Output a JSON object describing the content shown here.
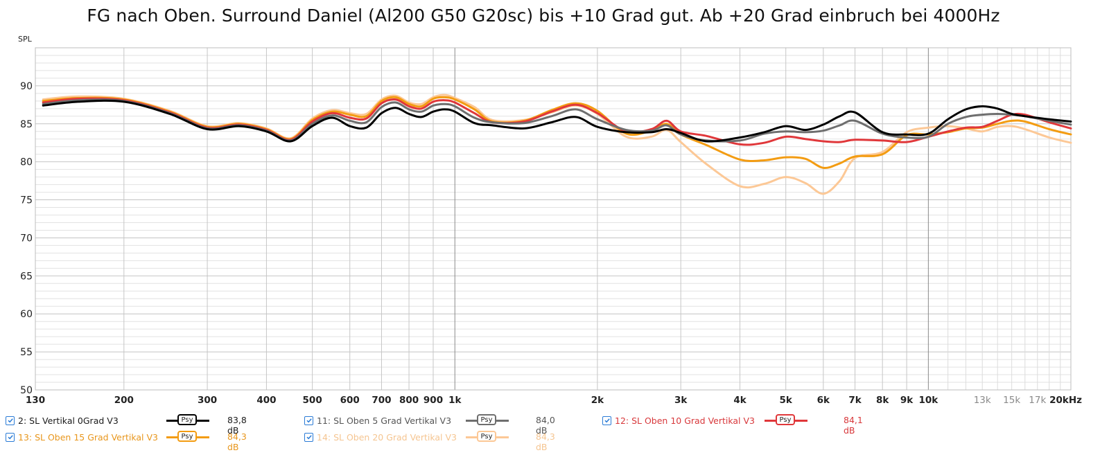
{
  "window": {
    "title": "FG nach Oben. Surround Daniel (Al200 G50 G20sc) bis +10 Grad gut. Ab +20 Grad einbruch bei 4000Hz"
  },
  "chart_data": {
    "type": "line",
    "title": "FG nach Oben. Surround Daniel (Al200 G50 G20sc) bis +10 Grad gut. Ab +20 Grad einbruch bei 4000Hz",
    "xlabel": "Hz",
    "ylabel": "SPL",
    "xscale": "log",
    "xlim": [
      130,
      20000
    ],
    "ylim": [
      50,
      95
    ],
    "grid": true,
    "legend_position": "bottom",
    "y_ticks": [
      50,
      55,
      60,
      65,
      70,
      75,
      80,
      85,
      90
    ],
    "x_ticks": [
      {
        "value": 130,
        "label": "130",
        "style": "major"
      },
      {
        "value": 200,
        "label": "200",
        "style": "major"
      },
      {
        "value": 300,
        "label": "300",
        "style": "major"
      },
      {
        "value": 400,
        "label": "400",
        "style": "major"
      },
      {
        "value": 500,
        "label": "500",
        "style": "major"
      },
      {
        "value": 600,
        "label": "600",
        "style": "major"
      },
      {
        "value": 700,
        "label": "700",
        "style": "major"
      },
      {
        "value": 800,
        "label": "800",
        "style": "major"
      },
      {
        "value": 900,
        "label": "900",
        "style": "major"
      },
      {
        "value": 1000,
        "label": "1k",
        "style": "major"
      },
      {
        "value": 2000,
        "label": "2k",
        "style": "major"
      },
      {
        "value": 3000,
        "label": "3k",
        "style": "major"
      },
      {
        "value": 4000,
        "label": "4k",
        "style": "major"
      },
      {
        "value": 5000,
        "label": "5k",
        "style": "major"
      },
      {
        "value": 6000,
        "label": "6k",
        "style": "major"
      },
      {
        "value": 7000,
        "label": "7k",
        "style": "major"
      },
      {
        "value": 8000,
        "label": "8k",
        "style": "major"
      },
      {
        "value": 9000,
        "label": "9k",
        "style": "major"
      },
      {
        "value": 10000,
        "label": "10k",
        "style": "major"
      },
      {
        "value": 13000,
        "label": "13k",
        "style": "minor"
      },
      {
        "value": 15000,
        "label": "15k",
        "style": "minor"
      },
      {
        "value": 17000,
        "label": "17k",
        "style": "minor"
      },
      {
        "value": 20000,
        "label": "20kHz",
        "style": "major"
      }
    ],
    "x": [
      135,
      160,
      200,
      250,
      300,
      350,
      400,
      450,
      500,
      550,
      600,
      650,
      700,
      750,
      800,
      850,
      900,
      950,
      1000,
      1100,
      1200,
      1400,
      1600,
      1800,
      2000,
      2300,
      2600,
      2800,
      3000,
      3400,
      4000,
      4500,
      5000,
      5500,
      6000,
      6500,
      7000,
      8000,
      9000,
      10000,
      11000,
      12000,
      13000,
      14000,
      15000,
      16000,
      18000,
      20000
    ],
    "series": [
      {
        "name": "2: SL Vertikal 0Grad V3",
        "color": "#000000",
        "average": "83,8 dB",
        "values": [
          87.4,
          87.9,
          87.9,
          86.3,
          84.3,
          84.7,
          84.0,
          82.7,
          84.7,
          85.8,
          84.7,
          84.5,
          86.4,
          87.1,
          86.3,
          85.9,
          86.6,
          86.9,
          86.6,
          85.1,
          84.8,
          84.4,
          85.2,
          85.9,
          84.6,
          83.9,
          83.9,
          84.3,
          83.8,
          82.7,
          83.2,
          83.9,
          84.7,
          84.2,
          84.9,
          86.0,
          86.5,
          83.9,
          83.6,
          83.7,
          85.6,
          86.9,
          87.3,
          87.0,
          86.3,
          86.0,
          85.6,
          85.3
        ]
      },
      {
        "name": "11: SL Oben 5 Grad Vertikal V3",
        "color": "#6e6e6e",
        "average": "84,0 dB",
        "values": [
          87.6,
          88.1,
          88.0,
          86.4,
          84.4,
          84.8,
          84.1,
          82.8,
          85.0,
          86.1,
          85.4,
          85.2,
          87.2,
          87.8,
          86.9,
          86.6,
          87.4,
          87.6,
          87.3,
          85.8,
          85.2,
          85.1,
          86.0,
          86.9,
          85.6,
          84.2,
          84.1,
          84.8,
          83.6,
          82.8,
          82.8,
          83.7,
          84.0,
          83.9,
          84.1,
          84.8,
          85.4,
          83.7,
          83.2,
          83.3,
          85.0,
          85.9,
          86.2,
          86.3,
          86.2,
          86.0,
          85.4,
          84.9
        ]
      },
      {
        "name": "12: SL Oben 10 Grad Vertikal V3",
        "color": "#e0373a",
        "average": "84,1 dB",
        "values": [
          87.8,
          88.3,
          88.1,
          86.5,
          84.5,
          84.9,
          84.2,
          82.9,
          85.3,
          86.4,
          85.8,
          85.7,
          87.7,
          88.2,
          87.3,
          87.0,
          87.9,
          88.1,
          87.8,
          86.4,
          85.2,
          85.3,
          86.6,
          87.5,
          86.4,
          84.0,
          84.3,
          85.4,
          84.0,
          83.4,
          82.3,
          82.5,
          83.3,
          83.0,
          82.7,
          82.6,
          82.9,
          82.8,
          82.6,
          83.3,
          84.0,
          84.5,
          84.6,
          85.4,
          86.2,
          86.2,
          85.2,
          84.4
        ]
      },
      {
        "name": "13: SL Oben 15 Grad Vertikal V3",
        "color": "#f39c12",
        "average": "84,3 dB",
        "values": [
          88.0,
          88.4,
          88.2,
          86.6,
          84.6,
          85.0,
          84.3,
          83.0,
          85.5,
          86.6,
          86.2,
          86.0,
          88.0,
          88.5,
          87.6,
          87.3,
          88.3,
          88.5,
          88.2,
          86.9,
          85.3,
          85.4,
          86.8,
          87.7,
          86.7,
          83.7,
          84.1,
          85.0,
          83.6,
          82.2,
          80.3,
          80.2,
          80.6,
          80.4,
          79.2,
          79.8,
          80.7,
          81.0,
          83.5,
          83.6,
          83.9,
          84.4,
          84.5,
          85.0,
          85.4,
          85.3,
          84.3,
          83.6
        ]
      },
      {
        "name": "14: SL Oben 20 Grad Vertikal V3",
        "color": "#fcc896",
        "average": "84,3 dB",
        "values": [
          88.2,
          88.6,
          88.3,
          86.7,
          84.7,
          85.1,
          84.4,
          83.1,
          85.7,
          86.8,
          86.4,
          86.3,
          88.2,
          88.7,
          87.8,
          87.6,
          88.5,
          88.8,
          88.4,
          87.2,
          85.5,
          85.5,
          86.5,
          87.4,
          86.3,
          83.3,
          83.3,
          84.2,
          82.6,
          79.7,
          76.8,
          77.1,
          78.0,
          77.2,
          75.8,
          77.5,
          80.5,
          81.3,
          83.9,
          84.5,
          84.7,
          84.4,
          84.0,
          84.6,
          84.7,
          84.3,
          83.2,
          82.5
        ]
      }
    ]
  },
  "legend": {
    "items": [
      {
        "label": "2: SL Vertikal 0Grad V3",
        "color": "#000000",
        "text_color": "#1a1a1a",
        "value": "83,8 dB",
        "badge": "Psy",
        "checked": true
      },
      {
        "label": "11: SL Oben 5 Grad Vertikal V3",
        "color": "#6e6e6e",
        "text_color": "#555555",
        "value": "84,0 dB",
        "badge": "Psy",
        "checked": true
      },
      {
        "label": "12: SL Oben 10 Grad Vertikal V3",
        "color": "#e0373a",
        "text_color": "#d8383b",
        "value": "84,1 dB",
        "badge": "Psy",
        "checked": true
      },
      {
        "label": "13: SL Oben 15 Grad Vertikal V3",
        "color": "#f39c12",
        "text_color": "#e8961c",
        "value": "84,3 dB",
        "badge": "Psy",
        "checked": true
      },
      {
        "label": "14: SL Oben 20 Grad Vertikal V3",
        "color": "#fcc896",
        "text_color": "#f5c591",
        "value": "84,3 dB",
        "badge": "Psy",
        "checked": true
      }
    ]
  }
}
